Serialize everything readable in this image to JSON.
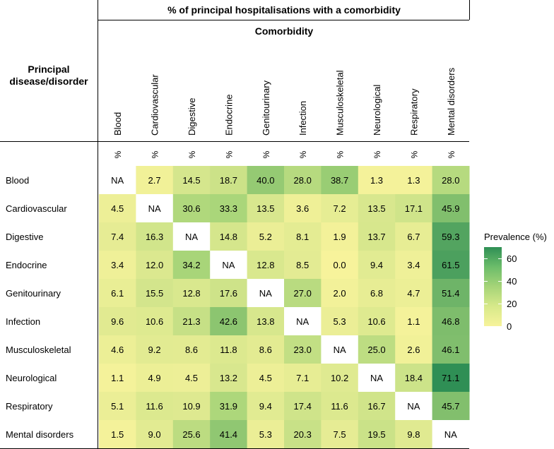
{
  "chart_data": {
    "type": "heatmap",
    "title": "% of principal hospitalisations with a comorbidity",
    "subtitle": "Comorbidity",
    "row_header": "Principal disease/disorder",
    "row_header_lines": [
      "Principal",
      "disease/disorder"
    ],
    "unit_label": "%",
    "columns": [
      "Blood",
      "Cardiovascular",
      "Digestive",
      "Endocrine",
      "Genitourinary",
      "Infection",
      "Musculoskeletal",
      "Neurological",
      "Respiratory",
      "Mental disorders"
    ],
    "rows": [
      "Blood",
      "Cardiovascular",
      "Digestive",
      "Endocrine",
      "Genitourinary",
      "Infection",
      "Musculoskeletal",
      "Neurological",
      "Respiratory",
      "Mental disorders"
    ],
    "values": [
      [
        null,
        2.7,
        14.5,
        18.7,
        40.0,
        28.0,
        38.7,
        1.3,
        1.3,
        28.0
      ],
      [
        4.5,
        null,
        30.6,
        33.3,
        13.5,
        3.6,
        7.2,
        13.5,
        17.1,
        45.9
      ],
      [
        7.4,
        16.3,
        null,
        14.8,
        5.2,
        8.1,
        1.9,
        13.7,
        6.7,
        59.3
      ],
      [
        3.4,
        12.0,
        34.2,
        null,
        12.8,
        8.5,
        0.0,
        9.4,
        3.4,
        61.5
      ],
      [
        6.1,
        15.5,
        12.8,
        17.6,
        null,
        27.0,
        2.0,
        6.8,
        4.7,
        51.4
      ],
      [
        9.6,
        10.6,
        21.3,
        42.6,
        13.8,
        null,
        5.3,
        10.6,
        1.1,
        46.8
      ],
      [
        4.6,
        9.2,
        8.6,
        11.8,
        8.6,
        23.0,
        null,
        25.0,
        2.6,
        46.1
      ],
      [
        1.1,
        4.9,
        4.5,
        13.2,
        4.5,
        7.1,
        10.2,
        null,
        18.4,
        71.1
      ],
      [
        5.1,
        11.6,
        10.9,
        31.9,
        9.4,
        17.4,
        11.6,
        16.7,
        null,
        45.7
      ],
      [
        1.5,
        9.0,
        25.6,
        41.4,
        5.3,
        20.3,
        7.5,
        19.5,
        9.8,
        null
      ]
    ],
    "missing_label": "NA",
    "legend": {
      "title": "Prevalence (%)",
      "ticks": [
        0,
        20,
        40,
        60
      ],
      "range": [
        0,
        70
      ]
    },
    "colors": {
      "low": "#f7f39b",
      "mid": "#a6d478",
      "high": "#2f8f55",
      "missing": "#ffffff",
      "rule": "#000000"
    }
  }
}
